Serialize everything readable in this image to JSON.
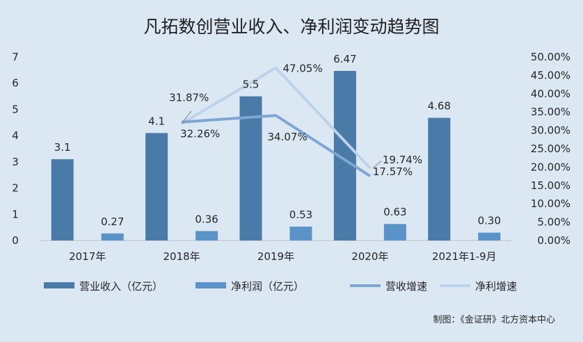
{
  "chart_data": {
    "type": "bar",
    "title": "凡拓数创营业收入、净利润变动趋势图",
    "categories": [
      "2017年",
      "2018年",
      "2019年",
      "2020年",
      "2021年1-9月"
    ],
    "ylim": [
      0,
      7
    ],
    "y2lim": [
      0,
      50
    ],
    "yticks": [
      "0",
      "1",
      "2",
      "3",
      "4",
      "5",
      "6",
      "7"
    ],
    "y2ticks": [
      "0.00%",
      "5.00%",
      "10.00%",
      "15.00%",
      "20.00%",
      "25.00%",
      "30.00%",
      "35.00%",
      "40.00%",
      "45.00%",
      "50.00%"
    ],
    "series": [
      {
        "name": "营业收入（亿元）",
        "kind": "bar",
        "axis": "left",
        "color": "#4a7aa8",
        "values": [
          3.1,
          4.1,
          5.5,
          6.47,
          4.68
        ],
        "labels": [
          "3.1",
          "4.1",
          "5.5",
          "6.47",
          "4.68"
        ]
      },
      {
        "name": "净利润（亿元）",
        "kind": "bar",
        "axis": "left",
        "color": "#5b93c8",
        "values": [
          0.27,
          0.36,
          0.53,
          0.63,
          0.3
        ],
        "labels": [
          "0.27",
          "0.36",
          "0.53",
          "0.63",
          "0.30"
        ]
      },
      {
        "name": "营收增速",
        "kind": "line",
        "axis": "right",
        "color": "#7ea6d3",
        "values": [
          null,
          32.26,
          34.07,
          17.57,
          null
        ],
        "labels": [
          "",
          "32.26%",
          "34.07%",
          "17.57%",
          ""
        ]
      },
      {
        "name": "净利增速",
        "kind": "line",
        "axis": "right",
        "color": "#bcd3ea",
        "values": [
          null,
          31.87,
          47.05,
          19.74,
          null
        ],
        "labels": [
          "",
          "31.87%",
          "47.05%",
          "19.74%",
          ""
        ]
      }
    ],
    "legend": "bottom",
    "grid": false
  },
  "credit": "制图：《金证研》北方资本中心"
}
